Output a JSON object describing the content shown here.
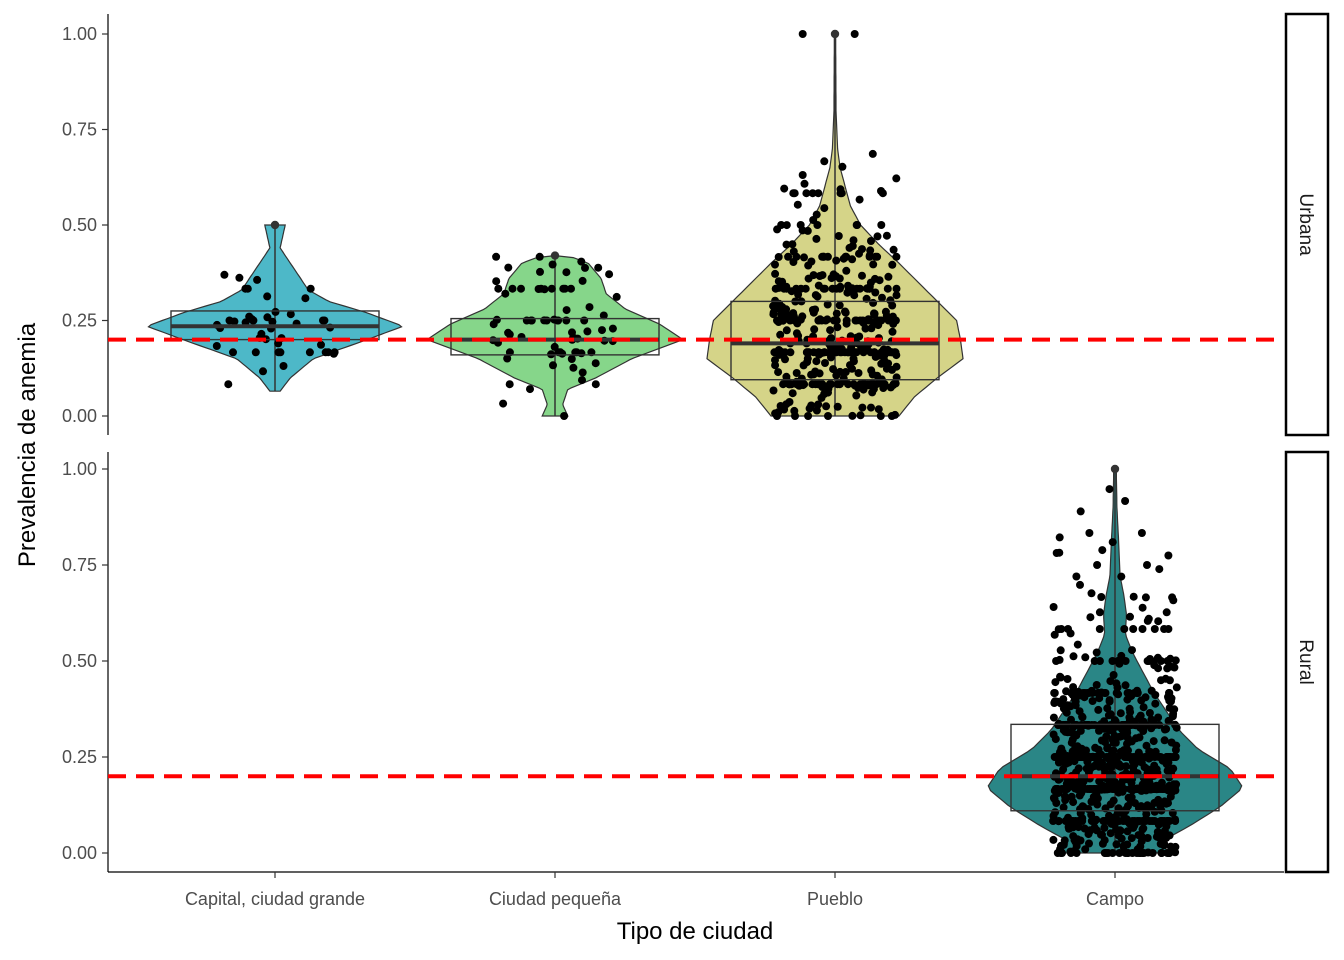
{
  "chart_data": {
    "type": "violin",
    "xlabel": "Tipo de ciudad",
    "ylabel": "Prevalencia de anemia",
    "categories": [
      "Capital, ciudad grande",
      "Ciudad pequeña",
      "Pueblo",
      "Campo"
    ],
    "ylim": [
      0,
      1
    ],
    "y_ticks": [
      "0.00",
      "0.25",
      "0.50",
      "0.75",
      "1.00"
    ],
    "reference_line": {
      "y": 0.2,
      "color": "#ff0000",
      "style": "dashed"
    },
    "legend": "none",
    "grid": false,
    "facets": [
      {
        "label": "Urbana",
        "groups": [
          {
            "category": "Capital, ciudad grande",
            "color": "#4db8c8",
            "min": 0.065,
            "max": 0.5,
            "box": {
              "q1": 0.2,
              "median": 0.235,
              "q3": 0.275
            },
            "n_points": 45,
            "density": [
              [
                0.065,
                0.04
              ],
              [
                0.1,
                0.12
              ],
              [
                0.15,
                0.3
              ],
              [
                0.2,
                0.72
              ],
              [
                0.235,
                1.0
              ],
              [
                0.27,
                0.72
              ],
              [
                0.3,
                0.42
              ],
              [
                0.33,
                0.26
              ],
              [
                0.36,
                0.2
              ],
              [
                0.4,
                0.12
              ],
              [
                0.44,
                0.04
              ],
              [
                0.47,
                0.06
              ],
              [
                0.5,
                0.08
              ]
            ]
          },
          {
            "category": "Ciudad pequeña",
            "color": "#86d68a",
            "min": 0.0,
            "max": 0.42,
            "box": {
              "q1": 0.16,
              "median": 0.2,
              "q3": 0.255
            },
            "n_points": 75,
            "density": [
              [
                0.0,
                0.1
              ],
              [
                0.03,
                0.06
              ],
              [
                0.07,
                0.1
              ],
              [
                0.1,
                0.32
              ],
              [
                0.15,
                0.6
              ],
              [
                0.2,
                1.0
              ],
              [
                0.24,
                0.82
              ],
              [
                0.28,
                0.55
              ],
              [
                0.32,
                0.4
              ],
              [
                0.36,
                0.36
              ],
              [
                0.4,
                0.26
              ],
              [
                0.42,
                0.1
              ]
            ]
          },
          {
            "category": "Pueblo",
            "color": "#d5d488",
            "min": 0.0,
            "max": 1.0,
            "box": {
              "q1": 0.095,
              "median": 0.19,
              "q3": 0.3
            },
            "n_points": 420,
            "density": [
              [
                0.0,
                0.5
              ],
              [
                0.05,
                0.62
              ],
              [
                0.1,
                0.8
              ],
              [
                0.15,
                1.0
              ],
              [
                0.2,
                0.98
              ],
              [
                0.25,
                0.95
              ],
              [
                0.3,
                0.8
              ],
              [
                0.35,
                0.65
              ],
              [
                0.4,
                0.5
              ],
              [
                0.45,
                0.34
              ],
              [
                0.5,
                0.2
              ],
              [
                0.55,
                0.12
              ],
              [
                0.6,
                0.08
              ],
              [
                0.65,
                0.04
              ],
              [
                0.7,
                0.02
              ],
              [
                0.8,
                0.008
              ],
              [
                1.0,
                0.005
              ]
            ]
          }
        ]
      },
      {
        "label": "Rural",
        "groups": [
          {
            "category": "Campo",
            "color": "#2a8686",
            "min": 0.0,
            "max": 1.0,
            "box": {
              "q1": 0.11,
              "median": 0.2,
              "q3": 0.335
            },
            "n_points": 800,
            "density": [
              [
                0.0,
                0.42
              ],
              [
                0.03,
                0.36
              ],
              [
                0.07,
                0.58
              ],
              [
                0.12,
                0.82
              ],
              [
                0.17,
                1.0
              ],
              [
                0.22,
                0.9
              ],
              [
                0.27,
                0.65
              ],
              [
                0.32,
                0.5
              ],
              [
                0.37,
                0.4
              ],
              [
                0.42,
                0.3
              ],
              [
                0.47,
                0.22
              ],
              [
                0.52,
                0.14
              ],
              [
                0.57,
                0.08
              ],
              [
                0.62,
                0.09
              ],
              [
                0.67,
                0.07
              ],
              [
                0.72,
                0.04
              ],
              [
                0.8,
                0.03
              ],
              [
                0.9,
                0.015
              ],
              [
                1.0,
                0.01
              ]
            ]
          }
        ]
      }
    ]
  }
}
